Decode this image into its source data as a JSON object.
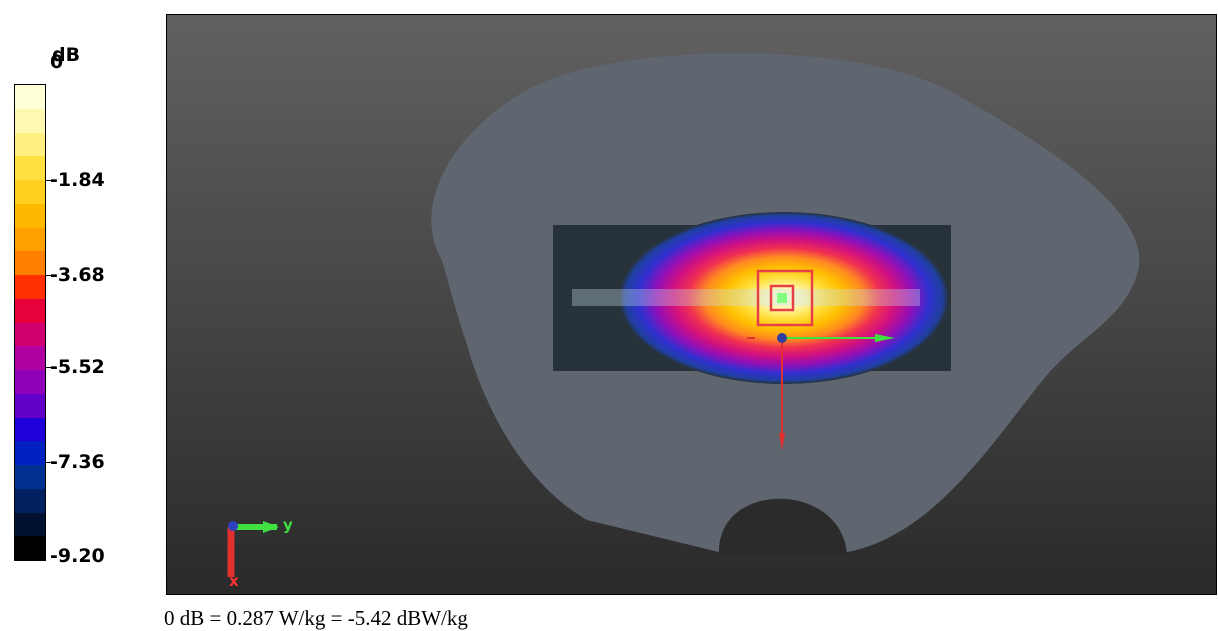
{
  "legend": {
    "unit": "dB",
    "ticks": [
      "0",
      "-1.84",
      "-3.68",
      "-5.52",
      "-7.36",
      "-9.20"
    ],
    "colors": [
      "#ffffd8",
      "#fff8b0",
      "#fff080",
      "#ffe040",
      "#ffd020",
      "#ffb800",
      "#ffa000",
      "#ff8000",
      "#ff3000",
      "#e8003a",
      "#d00070",
      "#b000a0",
      "#9000b8",
      "#6000c8",
      "#2000d8",
      "#0020c0",
      "#003090",
      "#002060",
      "#001030",
      "#000000"
    ]
  },
  "footer": {
    "text": "0 dB = 0.287 W/kg = -5.42 dBW/kg"
  },
  "axes": {
    "y_label": "y",
    "x_label": "x"
  },
  "colors": {
    "phantom": "#5f6670",
    "scan_area": "#27323a",
    "marker": "#e84048",
    "axis_x": "#e03030",
    "axis_y": "#40e040"
  }
}
